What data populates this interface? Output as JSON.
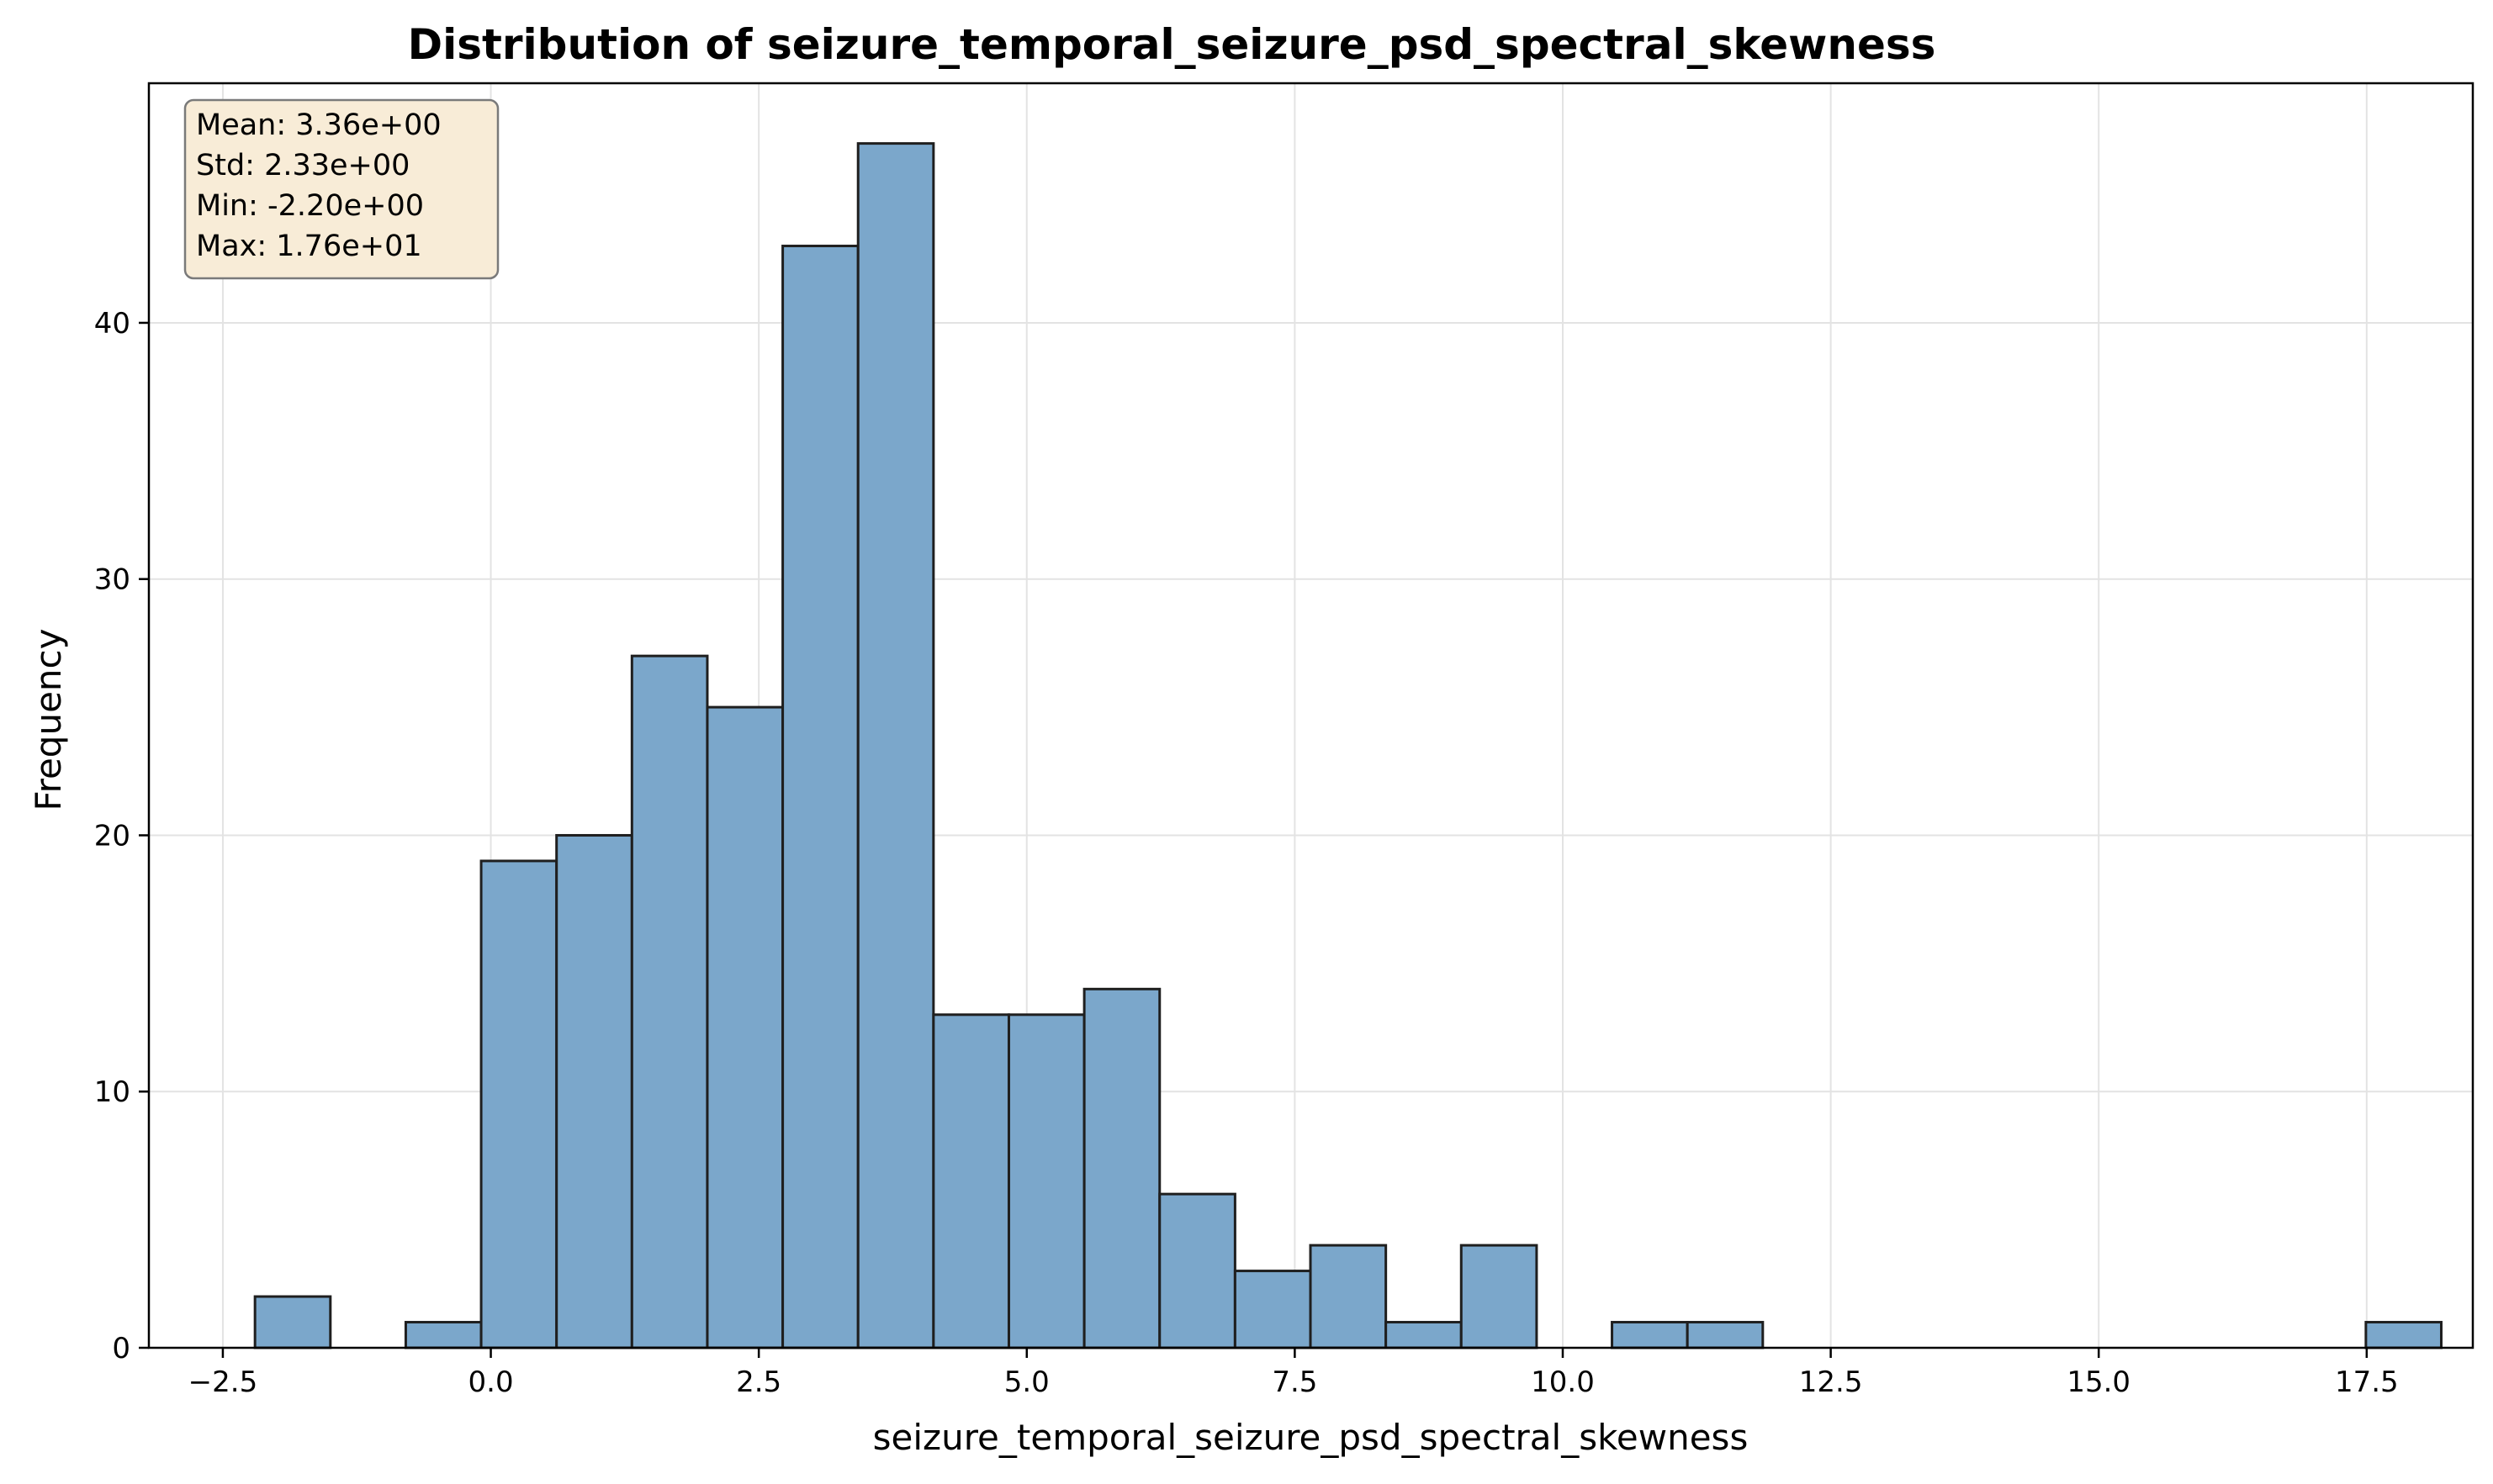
{
  "chart_data": {
    "type": "bar",
    "subtype": "histogram",
    "title": "Distribution of seizure_temporal_seizure_psd_spectral_skewness",
    "xlabel": "seizure_temporal_seizure_psd_spectral_skewness",
    "ylabel": "Frequency",
    "xlim": [
      -3.19,
      18.49
    ],
    "ylim": [
      0,
      49.35
    ],
    "x_ticks": [
      -2.5,
      0.0,
      2.5,
      5.0,
      7.5,
      10.0,
      12.5,
      15.0,
      17.5
    ],
    "x_tick_labels": [
      "−2.5",
      "0.0",
      "2.5",
      "5.0",
      "7.5",
      "10.0",
      "12.5",
      "15.0",
      "17.5"
    ],
    "y_ticks": [
      0,
      10,
      20,
      30,
      40
    ],
    "y_tick_labels": [
      "0",
      "10",
      "20",
      "30",
      "40"
    ],
    "grid": true,
    "legend": "none",
    "bin_start": -2.2,
    "bin_width": 0.7033,
    "counts": [
      2,
      0,
      1,
      19,
      20,
      27,
      25,
      43,
      47,
      13,
      13,
      14,
      6,
      3,
      4,
      1,
      4,
      0,
      1,
      1,
      0,
      0,
      0,
      0,
      0,
      0,
      0,
      0,
      1
    ],
    "stats_box": {
      "mean": "Mean: 3.36e+00",
      "std": "Std: 2.33e+00",
      "min": "Min: -2.20e+00",
      "max": "Max: 1.76e+01"
    },
    "colors": {
      "bar_fill": "#7ba7cb",
      "bar_edge": "#1f1f1f",
      "grid": "#e3e3e3",
      "stats_bg": "#f8ecd7",
      "stats_edge": "#7a7a7a"
    }
  }
}
